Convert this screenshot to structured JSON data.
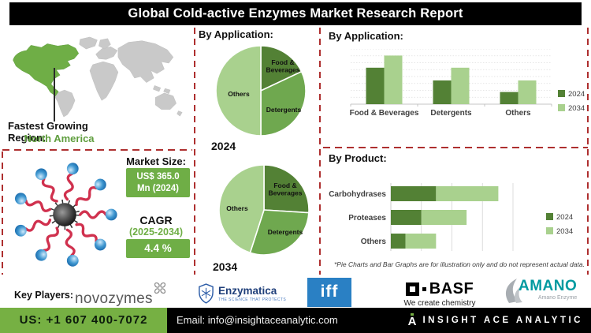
{
  "title": "Global Cold-active Enzymes Market Research Report",
  "left_panel": {
    "region_label": "Fastest Growing Region:",
    "region_value": "North America",
    "market_size_label": "Market Size:",
    "market_size_value": "US$ 365.0 Mn (2024)",
    "cagr_label": "CAGR",
    "cagr_period": "(2025-2034)",
    "cagr_value": "4.4 %"
  },
  "key_players": {
    "label": "Key Players:",
    "novozymes": "novozymes",
    "enzymatica_name": "Enzymatica",
    "enzymatica_tagline": "THE SCIENCE THAT PROTECTS",
    "iff": "iff",
    "basf_name": "BASF",
    "basf_tagline": "We create chemistry",
    "amano_name": "AMANO",
    "amano_tagline": "Amano Enzyme"
  },
  "footer": {
    "phone": "US: +1 607 400-7072",
    "email": "Email: info@insightaceanalytic.com",
    "brand": "INSIGHT ACE ANALYTIC"
  },
  "colors": {
    "dark_green": "#538135",
    "mid_green": "#6fa84f",
    "light_green": "#a9d18e",
    "box_green": "#6fae46",
    "footer_green": "#76b043",
    "divider_red": "#ae2f2f",
    "title_bg": "#000000"
  },
  "chart_data": [
    {
      "type": "pie",
      "title": "By Application:",
      "year_label": "2024",
      "labels": [
        "Food & Beverages",
        "Detergents",
        "Others"
      ],
      "label_lines": [
        [
          "Food &",
          "Beverages"
        ],
        [
          "Detergents"
        ],
        [
          "Others"
        ]
      ],
      "values_pct": [
        18,
        32,
        50
      ],
      "colors": [
        "#538135",
        "#6fa84f",
        "#a9d18e"
      ],
      "label_pos": [
        [
          88,
          27
        ],
        [
          89,
          84
        ],
        [
          32,
          64
        ]
      ],
      "start": "12 o'clock, clockwise"
    },
    {
      "type": "pie",
      "title": "By Application:",
      "year_label": "2034",
      "labels": [
        "Food & Beverages",
        "Detergents",
        "Others"
      ],
      "label_lines": [
        [
          "Food &",
          "Beverages"
        ],
        [
          "Detergents"
        ],
        [
          "Others"
        ]
      ],
      "values_pct": [
        26,
        29,
        45
      ],
      "colors": [
        "#538135",
        "#6fa84f",
        "#a9d18e"
      ],
      "label_pos": [
        [
          87,
          32
        ],
        [
          87,
          88
        ],
        [
          26,
          58
        ]
      ],
      "start": "12 o'clock, clockwise"
    },
    {
      "type": "bar",
      "title": "By Application:",
      "categories": [
        "Food & Beverages",
        "Detergents",
        "Others"
      ],
      "series": [
        {
          "name": "2024",
          "values": [
            66,
            43,
            22
          ],
          "color": "#538135"
        },
        {
          "name": "2034",
          "values": [
            88,
            66,
            43
          ],
          "color": "#a9d18e"
        }
      ],
      "ylim": [
        0,
        100
      ],
      "gridlines": 8,
      "legend_position": "right"
    },
    {
      "type": "bar-horizontal-stacked",
      "title": "By Product:",
      "categories": [
        "Carbohydrases",
        "Proteases",
        "Others"
      ],
      "series": [
        {
          "name": "2024",
          "values": [
            37,
            25,
            12
          ],
          "color": "#538135"
        },
        {
          "name": "2034",
          "values": [
            51,
            37,
            25
          ],
          "color": "#a9d18e"
        }
      ],
      "xlim": [
        0,
        100
      ],
      "gridlines": 5,
      "legend_position": "right",
      "footnote": "*Pie Charts and Bar Graphs are for illustration only and do not represent actual data."
    }
  ]
}
